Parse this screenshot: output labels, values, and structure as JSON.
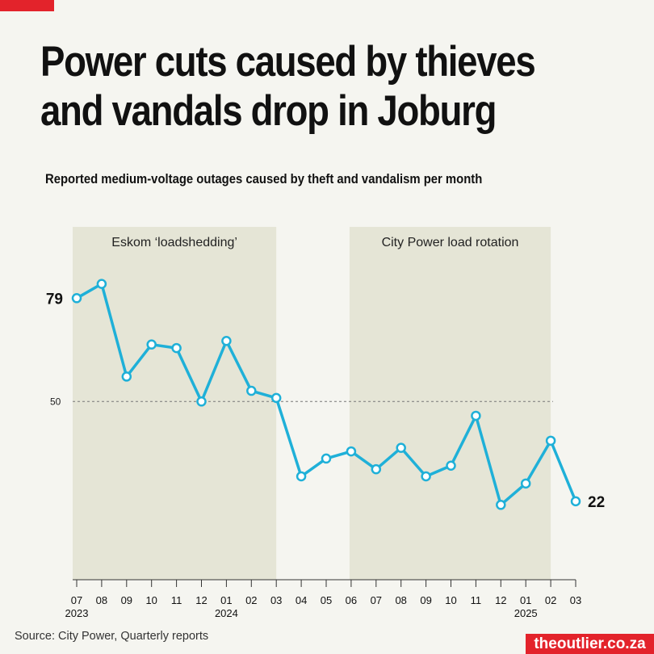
{
  "header": {
    "title_line1": "Power cuts caused by thieves",
    "title_line2": "and vandals drop in Joburg",
    "subtitle": "Reported medium-voltage outages caused by theft and vandalism per month"
  },
  "footer": {
    "source": "Source: City Power, Quarterly reports",
    "logo": "theoutlier.co.za"
  },
  "colors": {
    "line": "#1fb0d8",
    "shade": "#e5e5d6",
    "accent": "#e3232b"
  },
  "chart_data": {
    "type": "line",
    "title": "Reported medium-voltage outages caused by theft and vandalism per month",
    "x": [
      "07",
      "08",
      "09",
      "10",
      "11",
      "12",
      "01",
      "02",
      "03",
      "04",
      "05",
      "06",
      "07",
      "08",
      "09",
      "10",
      "11",
      "12",
      "01",
      "02",
      "03"
    ],
    "year_labels": [
      {
        "index": 0,
        "label": "2023"
      },
      {
        "index": 6,
        "label": "2024"
      },
      {
        "index": 18,
        "label": "2025"
      }
    ],
    "series": [
      {
        "name": "Outages",
        "values": [
          79,
          83,
          57,
          66,
          65,
          50,
          67,
          53,
          51,
          29,
          34,
          36,
          31,
          37,
          29,
          32,
          46,
          21,
          27,
          39,
          22
        ]
      }
    ],
    "ylim": [
      0,
      100
    ],
    "reference_line": {
      "value": 50,
      "label": "50"
    },
    "data_labels": [
      {
        "index": 0,
        "label": "79"
      },
      {
        "index": 20,
        "label": "22"
      }
    ],
    "shaded_periods": [
      {
        "start": 0,
        "end": 8,
        "label": "Eskom ‘loadshedding’"
      },
      {
        "start": 11,
        "end": 19,
        "label": "City Power load rotation"
      }
    ],
    "xlabel": "",
    "ylabel": ""
  }
}
